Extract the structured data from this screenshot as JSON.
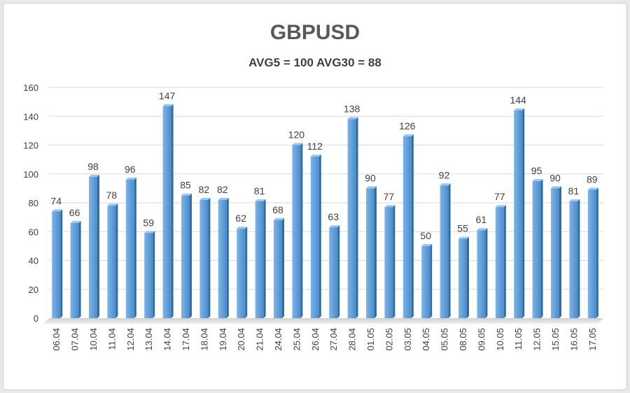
{
  "chart_data": {
    "type": "bar",
    "title": "GBPUSD",
    "subtitle": "AVG5 = 100 AVG30 = 88",
    "xlabel": "",
    "ylabel": "",
    "ylim": [
      0,
      160
    ],
    "yticks": [
      0,
      20,
      40,
      60,
      80,
      100,
      120,
      140,
      160
    ],
    "grid": true,
    "categories": [
      "06.04",
      "07.04",
      "10.04",
      "11.04",
      "12.04",
      "13.04",
      "14.04",
      "17.04",
      "18.04",
      "19.04",
      "20.04",
      "21.04",
      "24.04",
      "25.04",
      "26.04",
      "27.04",
      "28.04",
      "01.05",
      "02.05",
      "03.05",
      "04.05",
      "05.05",
      "08.05",
      "09.05",
      "10.05",
      "11.05",
      "12.05",
      "15.05",
      "16.05",
      "17.05"
    ],
    "values": [
      74,
      66,
      98,
      78,
      96,
      59,
      147,
      85,
      82,
      82,
      62,
      81,
      68,
      120,
      112,
      63,
      138,
      90,
      77,
      126,
      50,
      92,
      55,
      61,
      77,
      144,
      95,
      90,
      81,
      89
    ],
    "colors": {
      "bar": "#5b9bd5",
      "bar_side": "#2e6da4",
      "grid": "#d9d9d9",
      "text": "#404040"
    }
  }
}
